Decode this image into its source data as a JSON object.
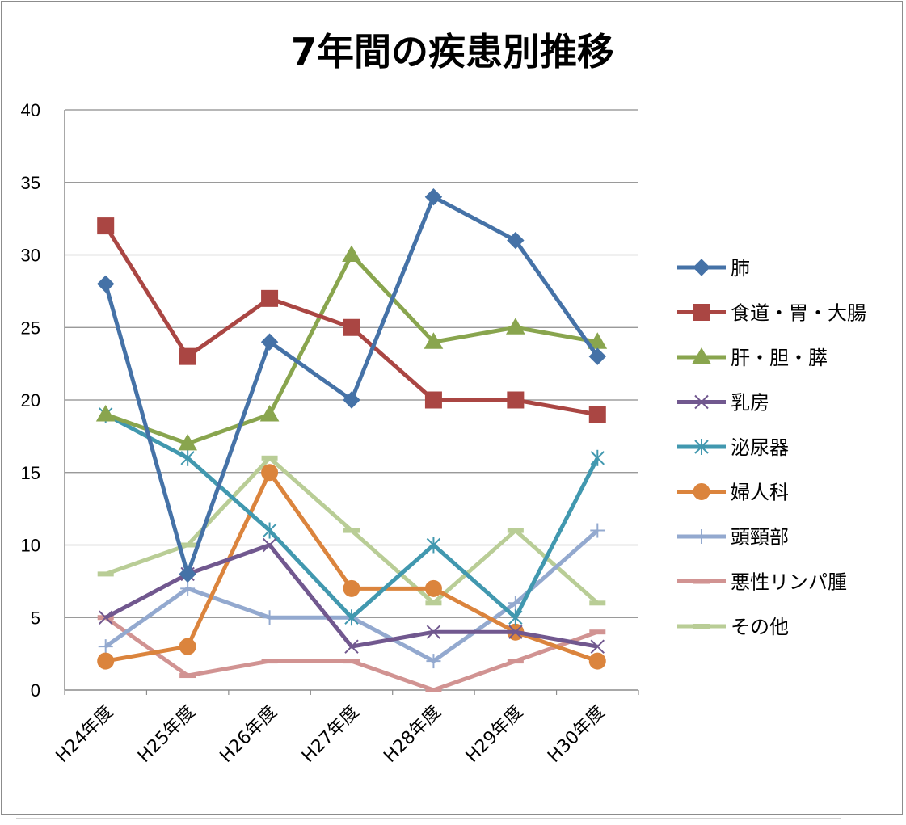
{
  "chart_data": {
    "type": "line",
    "title": "7年間の疾患別推移",
    "categories": [
      "H24年度",
      "H25年度",
      "H26年度",
      "H27年度",
      "H28年度",
      "H29年度",
      "H30年度"
    ],
    "ylim": [
      0,
      40
    ],
    "yticks": [
      0,
      5,
      10,
      15,
      20,
      25,
      30,
      35,
      40
    ],
    "grid": "horizontal",
    "legend_position": "right",
    "series": [
      {
        "name": "肺",
        "color": "#4572A7",
        "marker": "diamond",
        "values": [
          28,
          8,
          24,
          20,
          34,
          31,
          23
        ]
      },
      {
        "name": "食道・胃・大腸",
        "color": "#AA4643",
        "marker": "square",
        "values": [
          32,
          23,
          27,
          25,
          20,
          20,
          19
        ]
      },
      {
        "name": "肝・胆・膵",
        "color": "#89A54E",
        "marker": "triangle",
        "values": [
          19,
          17,
          19,
          30,
          24,
          25,
          24
        ]
      },
      {
        "name": "乳房",
        "color": "#71588F",
        "marker": "x",
        "values": [
          5,
          8,
          10,
          3,
          4,
          4,
          3
        ]
      },
      {
        "name": "泌尿器",
        "color": "#4198AF",
        "marker": "star",
        "values": [
          19,
          16,
          11,
          5,
          10,
          5,
          16
        ]
      },
      {
        "name": "婦人科",
        "color": "#DB843D",
        "marker": "circle",
        "values": [
          2,
          3,
          15,
          7,
          7,
          4,
          2
        ]
      },
      {
        "name": "頭頸部",
        "color": "#93A9CF",
        "marker": "plus",
        "values": [
          3,
          7,
          5,
          5,
          2,
          6,
          11
        ]
      },
      {
        "name": "悪性リンパ腫",
        "color": "#D19392",
        "marker": "dash",
        "values": [
          5,
          1,
          2,
          2,
          0,
          2,
          4
        ]
      },
      {
        "name": "その他",
        "color": "#B9CD96",
        "marker": "dash",
        "values": [
          8,
          10,
          16,
          11,
          6,
          11,
          6
        ]
      }
    ]
  }
}
